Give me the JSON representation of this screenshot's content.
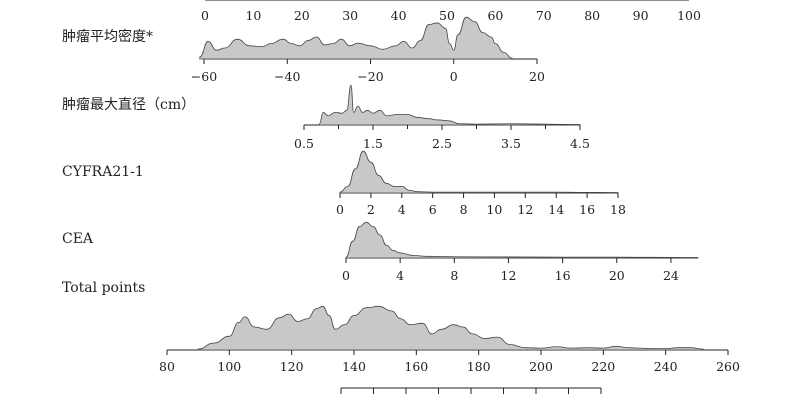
{
  "chart_data": {
    "type": "area",
    "title": "",
    "rows": [
      {
        "name": "",
        "ticks": [
          "0",
          "10",
          "20",
          "30",
          "40",
          "50",
          "60",
          "70",
          "80",
          "90",
          "100"
        ],
        "tick_values": [
          0,
          10,
          20,
          30,
          40,
          50,
          60,
          70,
          80,
          90,
          100
        ],
        "density": []
      },
      {
        "name": "肿瘤平均密度*",
        "ticks": [
          "−60",
          "−40",
          "−20",
          "0",
          "20"
        ],
        "tick_values": [
          -60,
          -40,
          -20,
          0,
          20
        ],
        "density": [
          [
            -61,
            0.05
          ],
          [
            -59,
            0.4
          ],
          [
            -57,
            0.2
          ],
          [
            -55,
            0.25
          ],
          [
            -52,
            0.45
          ],
          [
            -49,
            0.3
          ],
          [
            -46,
            0.28
          ],
          [
            -44,
            0.35
          ],
          [
            -41,
            0.45
          ],
          [
            -39,
            0.35
          ],
          [
            -37,
            0.3
          ],
          [
            -35,
            0.42
          ],
          [
            -33,
            0.5
          ],
          [
            -31,
            0.32
          ],
          [
            -29,
            0.35
          ],
          [
            -27,
            0.45
          ],
          [
            -25,
            0.3
          ],
          [
            -23,
            0.36
          ],
          [
            -20,
            0.3
          ],
          [
            -17,
            0.22
          ],
          [
            -14,
            0.3
          ],
          [
            -12,
            0.4
          ],
          [
            -10,
            0.25
          ],
          [
            -8,
            0.42
          ],
          [
            -6,
            0.78
          ],
          [
            -4,
            0.82
          ],
          [
            -2,
            0.7
          ],
          [
            -1,
            0.35
          ],
          [
            0,
            0.2
          ],
          [
            1,
            0.55
          ],
          [
            3,
            0.95
          ],
          [
            5,
            0.85
          ],
          [
            7,
            0.6
          ],
          [
            9,
            0.5
          ],
          [
            10,
            0.35
          ],
          [
            12,
            0.15
          ],
          [
            14,
            0.02
          ]
        ]
      },
      {
        "name": "肿瘤最大直径（cm）",
        "ticks": [
          "0.5",
          "1.5",
          "2.5",
          "3.5",
          "4.5"
        ],
        "tick_values": [
          0.5,
          1.5,
          2.5,
          3.5,
          4.5
        ],
        "density": [
          [
            0.72,
            0.02
          ],
          [
            0.78,
            0.3
          ],
          [
            0.85,
            0.22
          ],
          [
            0.95,
            0.3
          ],
          [
            1.05,
            0.28
          ],
          [
            1.12,
            0.35
          ],
          [
            1.18,
            0.95
          ],
          [
            1.22,
            0.3
          ],
          [
            1.28,
            0.45
          ],
          [
            1.35,
            0.3
          ],
          [
            1.42,
            0.35
          ],
          [
            1.5,
            0.28
          ],
          [
            1.6,
            0.35
          ],
          [
            1.7,
            0.22
          ],
          [
            1.85,
            0.25
          ],
          [
            2.0,
            0.25
          ],
          [
            2.15,
            0.18
          ],
          [
            2.3,
            0.15
          ],
          [
            2.45,
            0.12
          ],
          [
            2.6,
            0.1
          ],
          [
            2.75,
            0.03
          ],
          [
            3.0,
            0.02
          ],
          [
            3.5,
            0.03
          ],
          [
            4.0,
            0.02
          ],
          [
            4.5,
            0.01
          ]
        ]
      },
      {
        "name": "CYFRA21-1",
        "ticks": [
          "0",
          "2",
          "4",
          "6",
          "8",
          "10",
          "12",
          "14",
          "16",
          "18"
        ],
        "tick_values": [
          0,
          2,
          4,
          6,
          8,
          10,
          12,
          14,
          16,
          18
        ],
        "density": [
          [
            0.0,
            0.02
          ],
          [
            0.5,
            0.15
          ],
          [
            1.0,
            0.55
          ],
          [
            1.5,
            0.95
          ],
          [
            2.0,
            0.7
          ],
          [
            2.5,
            0.4
          ],
          [
            3.0,
            0.22
          ],
          [
            3.5,
            0.15
          ],
          [
            4.0,
            0.15
          ],
          [
            4.5,
            0.06
          ],
          [
            5.0,
            0.03
          ],
          [
            6.0,
            0.02
          ],
          [
            8.0,
            0.02
          ],
          [
            10.0,
            0.02
          ],
          [
            12.0,
            0.02
          ],
          [
            14.0,
            0.02
          ],
          [
            16.0,
            0.015
          ],
          [
            18.0,
            0.01
          ]
        ]
      },
      {
        "name": "CEA",
        "ticks": [
          "0",
          "4",
          "8",
          "12",
          "16",
          "20",
          "24"
        ],
        "tick_values": [
          0,
          4,
          8,
          12,
          16,
          20,
          24
        ],
        "density": [
          [
            0.0,
            0.02
          ],
          [
            0.5,
            0.4
          ],
          [
            1.0,
            0.75
          ],
          [
            1.5,
            0.85
          ],
          [
            2.0,
            0.75
          ],
          [
            2.5,
            0.55
          ],
          [
            3.0,
            0.3
          ],
          [
            3.5,
            0.18
          ],
          [
            4.0,
            0.12
          ],
          [
            5.0,
            0.06
          ],
          [
            6.0,
            0.04
          ],
          [
            8.0,
            0.03
          ],
          [
            12.0,
            0.025
          ],
          [
            16.0,
            0.02
          ],
          [
            20.0,
            0.02
          ],
          [
            24.0,
            0.015
          ],
          [
            26.0,
            0.01
          ]
        ]
      },
      {
        "name": "Total points",
        "ticks": [
          "80",
          "100",
          "120",
          "140",
          "160",
          "180",
          "200",
          "220",
          "240",
          "260"
        ],
        "tick_values": [
          80,
          100,
          120,
          140,
          160,
          180,
          200,
          220,
          240,
          260
        ],
        "density": [
          [
            90,
            0.02
          ],
          [
            95,
            0.15
          ],
          [
            100,
            0.3
          ],
          [
            103,
            0.6
          ],
          [
            105,
            0.72
          ],
          [
            108,
            0.5
          ],
          [
            112,
            0.45
          ],
          [
            116,
            0.7
          ],
          [
            119,
            0.78
          ],
          [
            122,
            0.62
          ],
          [
            125,
            0.68
          ],
          [
            128,
            0.9
          ],
          [
            130,
            0.95
          ],
          [
            132,
            0.75
          ],
          [
            134,
            0.45
          ],
          [
            137,
            0.55
          ],
          [
            140,
            0.75
          ],
          [
            144,
            0.92
          ],
          [
            148,
            0.95
          ],
          [
            152,
            0.85
          ],
          [
            155,
            0.68
          ],
          [
            158,
            0.55
          ],
          [
            162,
            0.58
          ],
          [
            165,
            0.35
          ],
          [
            168,
            0.45
          ],
          [
            172,
            0.55
          ],
          [
            175,
            0.5
          ],
          [
            178,
            0.35
          ],
          [
            182,
            0.25
          ],
          [
            186,
            0.28
          ],
          [
            190,
            0.12
          ],
          [
            195,
            0.05
          ],
          [
            200,
            0.04
          ],
          [
            205,
            0.07
          ],
          [
            210,
            0.04
          ],
          [
            215,
            0.05
          ],
          [
            220,
            0.04
          ],
          [
            224,
            0.08
          ],
          [
            228,
            0.05
          ],
          [
            232,
            0.04
          ],
          [
            236,
            0.03
          ],
          [
            240,
            0.03
          ],
          [
            244,
            0.05
          ],
          [
            248,
            0.05
          ],
          [
            252,
            0.02
          ]
        ]
      },
      {
        "name": "",
        "ticks": [],
        "tick_values": [],
        "density": []
      }
    ]
  }
}
